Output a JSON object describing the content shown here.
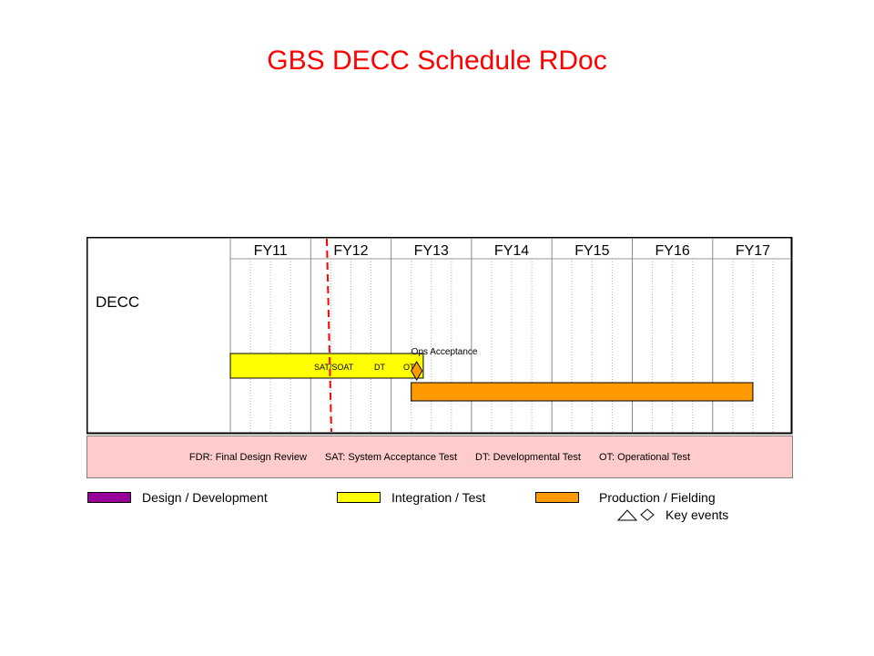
{
  "title": "GBS DECC Schedule RDoc",
  "row_label": "DECC",
  "fiscal_years": [
    "FY11",
    "FY12",
    "FY13",
    "FY14",
    "FY15",
    "FY16",
    "FY17"
  ],
  "bars": [
    {
      "phase": "Integration / Test",
      "color": "#ffff00",
      "start_fy": 11.0,
      "end_fy": 13.4,
      "labels": [
        "SAT/SOAT",
        "DT",
        "OT"
      ]
    },
    {
      "phase": "Production / Fielding",
      "color": "#ff9900",
      "start_fy": 13.25,
      "end_fy": 17.5,
      "labels": []
    }
  ],
  "milestones": [
    {
      "label": "Ops Acceptance",
      "shape": "diamond",
      "fy": 13.25,
      "color": "#ff9900"
    }
  ],
  "current_date_line": {
    "fy": 12.2,
    "color": "#ff0000"
  },
  "abbreviations": [
    "FDR: Final Design Review",
    "SAT: System Acceptance Test",
    "DT: Developmental Test",
    "OT: Operational Test"
  ],
  "legend": [
    {
      "label": "Design / Development",
      "color": "#990099"
    },
    {
      "label": "Integration / Test",
      "color": "#ffff00"
    },
    {
      "label": "Production / Fielding",
      "color": "#ff9900"
    }
  ],
  "key_events_label": "Key events",
  "key_event_icons": [
    "triangle-icon",
    "diamond-icon"
  ]
}
